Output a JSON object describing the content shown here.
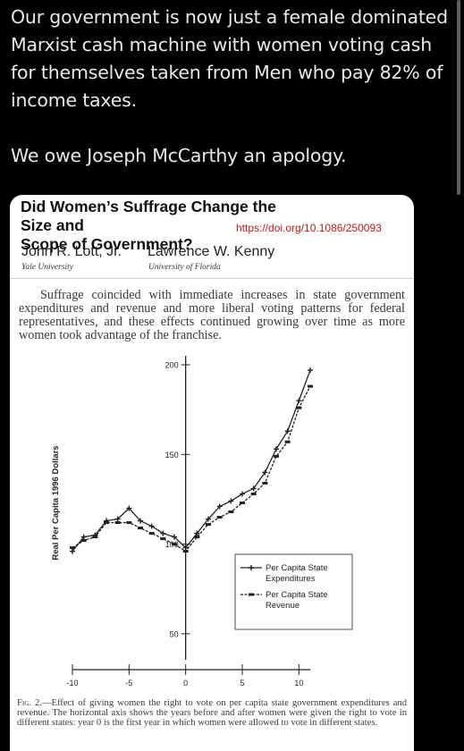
{
  "tweet": {
    "paragraph_1": "Our government is now just a female dominated Marxist cash machine with women voting cash for themselves taken from Men who pay 82% of income taxes.",
    "paragraph_2": "We owe Joseph McCarthy an apology."
  },
  "paper": {
    "title": "Did Women’s Suffrage Change the Size and\nScope of Government?",
    "doi": "https://doi.org/10.1086/250093",
    "authors": [
      {
        "name": "John R. Lott, Jr.",
        "affiliation": "Yale University"
      },
      {
        "name": "Lawrence W. Kenny",
        "affiliation": "University of Florida"
      }
    ],
    "summary": "Suffrage coincided with immediate increases in state government expenditures and revenue and more liberal voting patterns for federal representatives, and these effects continued growing over time as more women took advantage of the franchise.",
    "figure_label": "Fig. 2.",
    "figure_caption": "—Effect of giving women the right to vote on per capita state government expenditures and revenue. The horizontal axis shows the years before and after women were given the right to vote in different states: year 0 is the first year in which women were allowed to vote in different states."
  },
  "chart_data": {
    "type": "line",
    "ylabel": "Real Per Capita 1996 Dollars",
    "xlabel": "",
    "xlim": [
      -10,
      11
    ],
    "ylim": [
      30,
      205
    ],
    "x_ticks": [
      -10,
      -5,
      0,
      5,
      10
    ],
    "y_ticks": [
      50,
      100,
      150,
      200
    ],
    "legend_position": "bottom-right",
    "x": [
      -10,
      -9,
      -8,
      -7,
      -6,
      -5,
      -4,
      -3,
      -2,
      -1,
      0,
      1,
      2,
      3,
      4,
      5,
      6,
      7,
      8,
      9,
      10,
      11
    ],
    "series": [
      {
        "name": "Per Capita State Expenditures",
        "marker": "plus",
        "values": [
          96,
          104,
          105,
          113,
          114,
          120,
          113,
          110,
          106,
          104,
          98,
          106,
          114,
          121,
          124,
          128,
          131,
          140,
          153,
          163,
          180,
          197
        ]
      },
      {
        "name": "Per Capita State Revenue",
        "marker": "dash",
        "values": [
          98,
          102,
          104,
          112,
          112,
          112,
          109,
          106,
          103,
          100,
          96,
          104,
          111,
          115,
          118,
          123,
          128,
          134,
          149,
          157,
          176,
          188
        ]
      }
    ]
  }
}
